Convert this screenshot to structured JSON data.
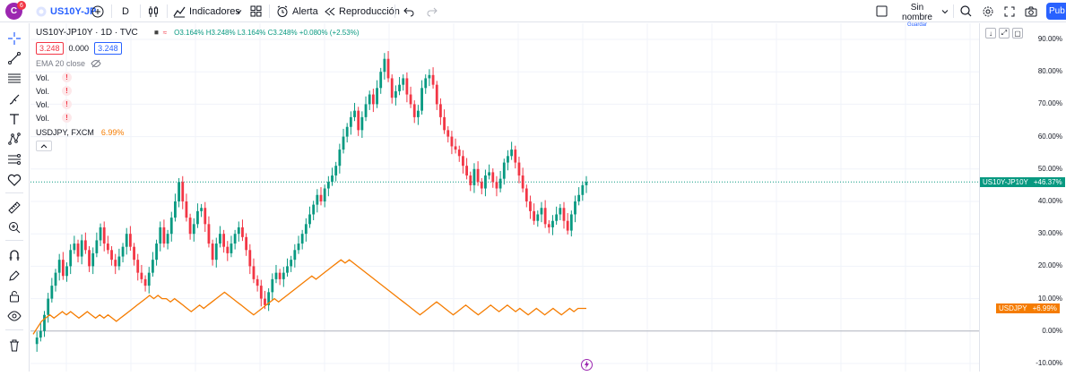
{
  "header": {
    "avatar_letter": "C",
    "avatar_badge": "6",
    "symbol": "US10Y-JP",
    "interval": "D",
    "indicators_label": "Indicadores",
    "alert_label": "Alerta",
    "replay_label": "Reproducción",
    "layout_name": "Sin nombre",
    "layout_status": "Guardar",
    "publish_label": "Pub"
  },
  "legend": {
    "title": "US10Y-JP10Y · 1D · TVC",
    "ohlc": "O3.164% H3.248% L3.164% C3.248% +0.080% (+2.53%)",
    "price_box_1": "3.248",
    "spread": "0.000",
    "price_box_2": "3.248",
    "ema_label": "EMA 20 close",
    "vol_label": "Vol.",
    "usdjpy_label": "USDJPY, FXCM",
    "usdjpy_value": "6.99%"
  },
  "price_axis": {
    "labels": [
      "90.00%",
      "80.00%",
      "70.00%",
      "60.00%",
      "50.00%",
      "40.00%",
      "30.00%",
      "20.00%",
      "10.00%",
      "0.00%",
      "-10.00%"
    ],
    "main_tag_name": "US10Y-JP10Y",
    "main_tag_value": "+46.37%",
    "usd_tag_name": "USDJPY",
    "usd_tag_value": "+6.99%"
  },
  "colors": {
    "up": "#089981",
    "down": "#f23645",
    "usdjpy": "#f57c00",
    "accent": "#2962ff"
  },
  "chart_data": {
    "type": "line",
    "ylim": [
      -10,
      90
    ],
    "series": [
      {
        "name": "US10Y-JP10Y",
        "values": [
          -4,
          -2,
          0,
          5,
          10,
          14,
          18,
          22,
          17,
          20,
          25,
          27,
          23,
          28,
          25,
          20,
          24,
          28,
          32,
          27,
          25,
          22,
          20,
          23,
          26,
          30,
          26,
          22,
          18,
          16,
          14,
          18,
          22,
          27,
          32,
          27,
          30,
          35,
          40,
          46,
          40,
          35,
          30,
          33,
          37,
          38,
          33,
          27,
          22,
          27,
          30,
          26,
          24,
          27,
          30,
          32,
          29,
          25,
          20,
          16,
          14,
          10,
          8,
          12,
          16,
          18,
          16,
          18,
          20,
          22,
          25,
          27,
          30,
          33,
          36,
          39,
          42,
          40,
          44,
          46,
          48,
          51,
          56,
          60,
          63,
          66,
          68,
          62,
          66,
          70,
          73,
          70,
          75,
          80,
          84,
          78,
          72,
          74,
          76,
          78,
          73,
          70,
          66,
          68,
          75,
          78,
          79,
          76,
          70,
          66,
          62,
          60,
          57,
          56,
          54,
          51,
          48,
          45,
          50,
          46,
          44,
          48,
          49,
          46,
          44,
          47,
          52,
          54,
          56,
          52,
          48,
          44,
          40,
          37,
          34,
          36,
          38,
          33,
          32,
          34,
          36,
          38,
          34,
          31,
          36,
          40,
          42,
          45,
          46
        ]
      },
      {
        "name": "USDJPY",
        "values": [
          -1,
          1,
          3,
          4,
          5,
          4,
          5,
          6,
          5,
          6,
          5,
          4,
          5,
          6,
          5,
          4,
          5,
          4,
          5,
          4,
          3,
          4,
          5,
          6,
          7,
          8,
          9,
          10,
          11,
          10,
          11,
          10,
          10,
          9,
          10,
          9,
          8,
          7,
          6,
          7,
          8,
          7,
          8,
          9,
          10,
          11,
          12,
          11,
          10,
          9,
          8,
          7,
          6,
          5,
          6,
          7,
          8,
          9,
          10,
          9,
          10,
          11,
          12,
          13,
          14,
          15,
          16,
          17,
          16,
          17,
          18,
          19,
          20,
          21,
          22,
          21,
          22,
          21,
          20,
          19,
          18,
          17,
          16,
          15,
          14,
          13,
          12,
          11,
          10,
          9,
          8,
          7,
          6,
          5,
          6,
          7,
          8,
          9,
          8,
          7,
          6,
          5,
          6,
          7,
          8,
          7,
          6,
          5,
          6,
          7,
          8,
          7,
          6,
          7,
          8,
          7,
          6,
          7,
          6,
          5,
          6,
          7,
          6,
          5,
          6,
          7,
          6,
          5,
          6,
          7,
          6,
          7,
          7,
          7
        ]
      }
    ]
  }
}
